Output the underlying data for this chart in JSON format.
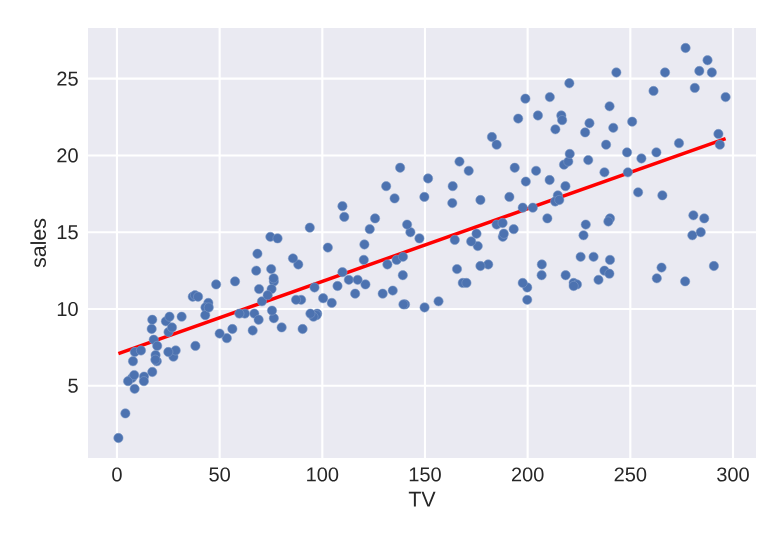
{
  "chart_data": {
    "type": "scatter",
    "xlabel": "TV",
    "ylabel": "sales",
    "xlim": [
      -14.1,
      311.2
    ],
    "ylim": [
      0.3,
      28.3
    ],
    "xticks": [
      0,
      50,
      100,
      150,
      200,
      250,
      300
    ],
    "yticks": [
      5,
      10,
      15,
      20,
      25
    ],
    "grid": true,
    "series": [
      {
        "color": "#4c72b0",
        "marker": "circle",
        "x": [
          230.1,
          44.5,
          17.2,
          151.5,
          180.8,
          8.7,
          57.5,
          120.2,
          8.6,
          199.8,
          66.1,
          214.7,
          23.8,
          97.5,
          204.1,
          195.4,
          67.8,
          281.4,
          69.2,
          147.3,
          218.4,
          237.4,
          13.2,
          228.3,
          62.3,
          262.9,
          142.9,
          240.1,
          248.8,
          70.6,
          292.9,
          112.9,
          97.2,
          265.6,
          95.7,
          290.7,
          266.9,
          74.7,
          43.1,
          228,
          202.5,
          177,
          293.6,
          206.9,
          25.1,
          175.1,
          89.7,
          239.9,
          227.2,
          66.9,
          199.8,
          100.4,
          216.4,
          182.6,
          262.7,
          198.9,
          7.3,
          136.2,
          210.8,
          210.7,
          53.5,
          261.3,
          239.3,
          102.7,
          131.1,
          69,
          31.5,
          139.3,
          237.4,
          216.8,
          199.1,
          109.8,
          26.8,
          129.4,
          213.4,
          16.9,
          27.5,
          120.5,
          5.4,
          116,
          76.4,
          239.8,
          75.3,
          68.4,
          213.5,
          193.2,
          76.3,
          110.7,
          88.3,
          109.8,
          134.3,
          28.6,
          217.7,
          250.9,
          107.4,
          163.3,
          197.6,
          184.9,
          289.7,
          135.2,
          222.4,
          296.4,
          280.2,
          187.9,
          238.2,
          137.9,
          25,
          90.4,
          13.1,
          255.4,
          225.8,
          241.7,
          175.7,
          209.6,
          78.2,
          75.1,
          139.2,
          76.4,
          125.7,
          19.4,
          141.3,
          18.8,
          224,
          123.1,
          229.5,
          87.2,
          7.8,
          80.2,
          220.3,
          59.6,
          0.7,
          265.2,
          8.4,
          219.8,
          36.9,
          48.3,
          25.6,
          273.7,
          43,
          184.9,
          73.4,
          193.7,
          220.5,
          104.6,
          96.2,
          140.3,
          240.1,
          243.2,
          38,
          44.7,
          280.7,
          121,
          197.6,
          171.3,
          187.8,
          4.1,
          93.9,
          149.8,
          11.7,
          131.7,
          172.5,
          85.7,
          188.4,
          163.5,
          117.2,
          234.5,
          17.9,
          206.8,
          215.4,
          284.3,
          50,
          164.5,
          19.6,
          168.4,
          222.4,
          276.9,
          248.4,
          170.2,
          276.7,
          165.6,
          156.6,
          218.5,
          56.2,
          287.6,
          253.8,
          205,
          139.5,
          191.1,
          286,
          18.7,
          39.5,
          75.5,
          17.2,
          166.8,
          149.7,
          38.2,
          94.2,
          177,
          283.6,
          232.1
        ],
        "values": [
          22.1,
          10.4,
          9.3,
          18.5,
          12.9,
          7.2,
          11.8,
          13.2,
          4.8,
          10.6,
          8.6,
          17.4,
          9.2,
          9.7,
          19,
          22.4,
          12.5,
          24.4,
          11.3,
          14.6,
          18,
          12.5,
          5.6,
          15.5,
          9.7,
          12,
          15,
          15.9,
          18.9,
          10.5,
          21.4,
          11.9,
          9.6,
          17.4,
          9.5,
          12.8,
          25.4,
          14.7,
          10.1,
          21.5,
          16.6,
          17.1,
          20.7,
          12.9,
          8.5,
          14.9,
          10.6,
          23.2,
          14.8,
          9.7,
          11.4,
          10.7,
          22.6,
          21.2,
          20.2,
          23.7,
          5.5,
          13.2,
          23.8,
          18.4,
          8.1,
          24.2,
          15.7,
          14,
          18,
          9.3,
          9.5,
          13.4,
          18.9,
          22.3,
          18.3,
          12.4,
          8.8,
          11,
          17,
          8.7,
          6.9,
          14.2,
          5.3,
          11,
          11.8,
          12.3,
          11.3,
          13.6,
          21.7,
          15.2,
          12,
          16,
          12.9,
          16.7,
          11.2,
          7.3,
          19.4,
          22.2,
          11.5,
          16.9,
          11.7,
          15.5,
          25.4,
          17.2,
          11.7,
          23.8,
          14.8,
          14.7,
          20.7,
          19.2,
          7.2,
          8.7,
          5.3,
          19.8,
          13.4,
          21.8,
          14.1,
          15.9,
          14.6,
          12.6,
          12.2,
          9.4,
          15.9,
          6.6,
          15.5,
          7,
          11.6,
          15.2,
          19.7,
          10.6,
          6.6,
          8.8,
          24.7,
          9.7,
          1.6,
          12.7,
          5.7,
          19.6,
          10.8,
          11.6,
          9.5,
          20.8,
          9.6,
          20.7,
          10.9,
          19.2,
          20.1,
          10.4,
          11.4,
          10.3,
          13.2,
          25.4,
          10.9,
          10.1,
          16.1,
          11.6,
          16.6,
          19,
          15.6,
          3.2,
          15.3,
          10.1,
          7.3,
          12.9,
          14.4,
          13.3,
          14.9,
          18,
          11.9,
          11.9,
          8,
          12.2,
          17.1,
          15,
          8.4,
          14.5,
          7.6,
          11.7,
          11.5,
          27,
          20.2,
          11.7,
          11.8,
          12.6,
          10.5,
          12.2,
          8.7,
          26.2,
          17.6,
          22.6,
          10.3,
          17.3,
          15.9,
          6.7,
          10.8,
          9.9,
          5.9,
          19.6,
          17.3,
          7.6,
          9.7,
          12.8,
          25.5,
          13.4
        ]
      },
      {
        "type": "line",
        "color": "#ff0000",
        "marker": "none",
        "line_style": "solid",
        "x": [
          0.7,
          296.4
        ],
        "values": [
          7.1,
          21.1
        ]
      }
    ]
  }
}
